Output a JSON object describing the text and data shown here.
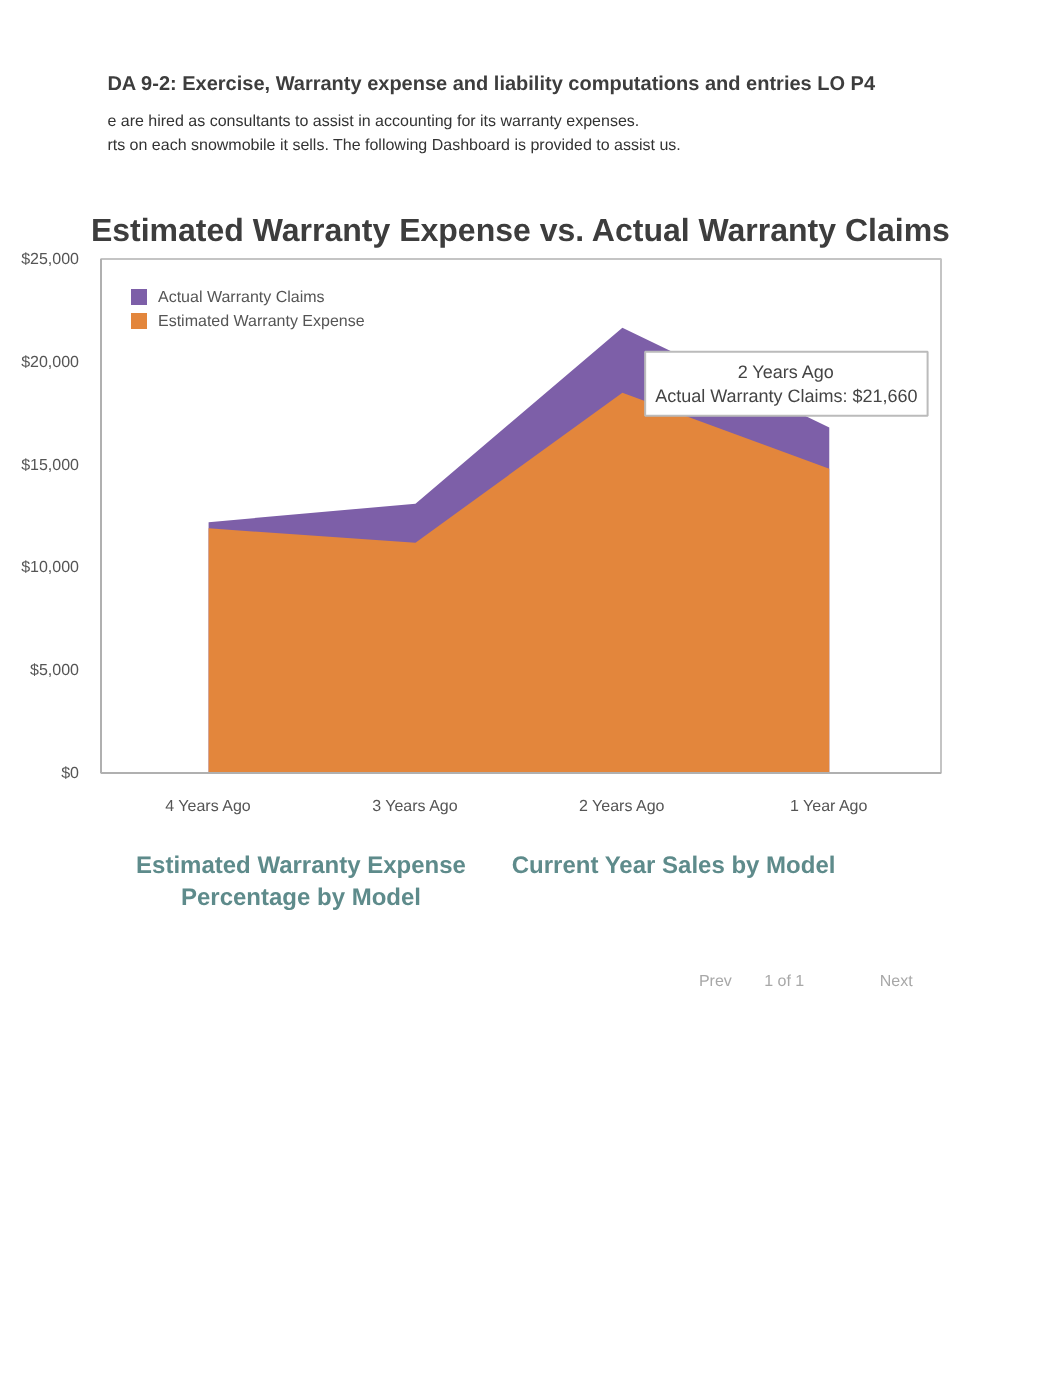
{
  "chart_data": {
    "type": "area",
    "title": "Estimated Warranty Expense vs. Actual Warranty Claims",
    "categories": [
      "4 Years Ago",
      "3 Years Ago",
      "2 Years Ago",
      "1 Year Ago"
    ],
    "series": [
      {
        "name": "Actual Warranty Claims",
        "color": "#7d5fa8",
        "values": [
          12200,
          13100,
          21660,
          16800
        ]
      },
      {
        "name": "Estimated Warranty Expense",
        "color": "#e3863c",
        "values": [
          11900,
          11200,
          18500,
          14800
        ]
      }
    ],
    "ylim": [
      0,
      25000
    ],
    "yticks": [
      {
        "value": 0,
        "label": "$0"
      },
      {
        "value": 5000,
        "label": "$5,000"
      },
      {
        "value": 10000,
        "label": "$10,000"
      },
      {
        "value": 15000,
        "label": "$15,000"
      },
      {
        "value": 20000,
        "label": "$20,000"
      },
      {
        "value": 25000,
        "label": "$25,000"
      }
    ],
    "grid": false,
    "legend": "top left",
    "annotations": [
      "DA 9-2: Exercise, Warranty expense and liability computations and entries LO P4",
      "e are hired as consultants to assist in accounting for its warranty expenses.",
      "rts on each snowmobile it sells. The following Dashboard is provided to assist us.",
      "Estimated Warranty Expense Percentage by Model",
      "Current Year Sales by Model",
      "Prev",
      "1 of 1",
      "Next",
      {
        "text": "2 Years Ago\nActual Warranty Claims: $21,660",
        "x": "2 Years Ago",
        "y": 21660
      }
    ]
  }
}
